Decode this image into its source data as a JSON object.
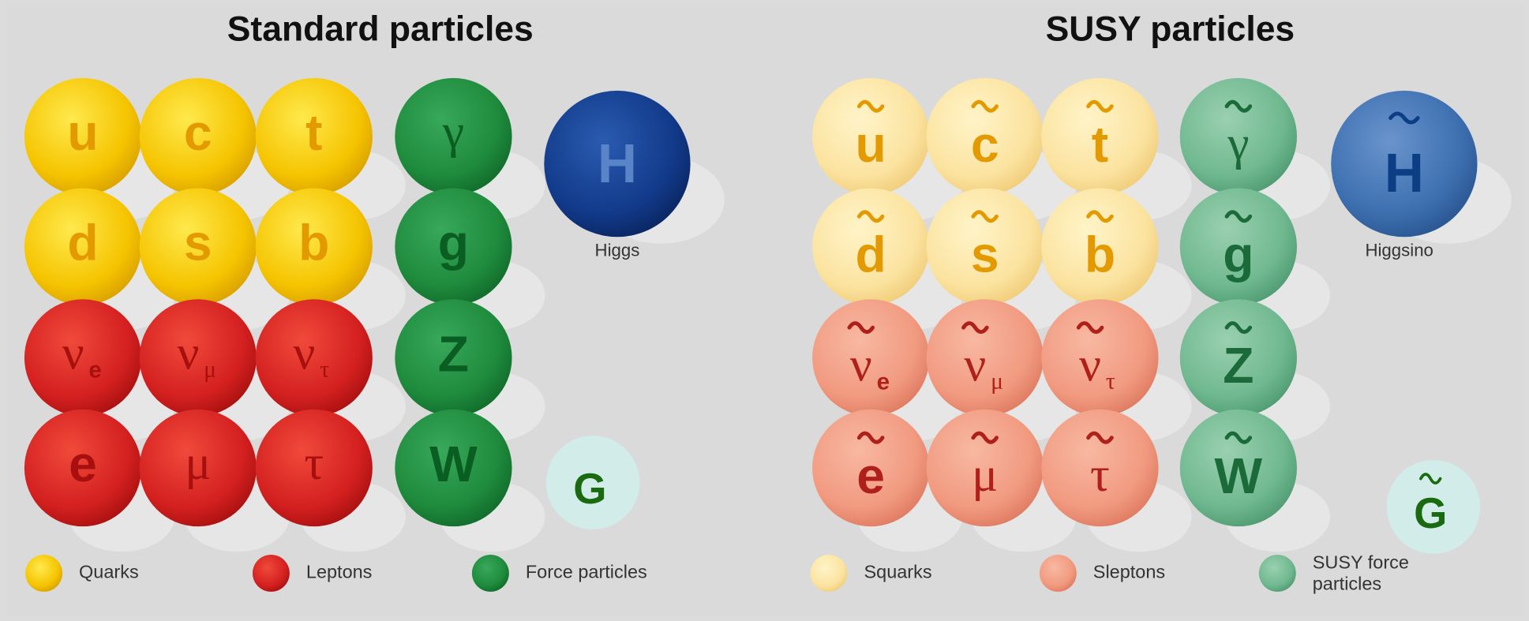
{
  "panels": [
    {
      "title": "Standard particles",
      "particles": [
        [
          {
            "symbol": "u"
          },
          {
            "symbol": "c"
          },
          {
            "symbol": "t"
          },
          {
            "symbol": "γ"
          }
        ],
        [
          {
            "symbol": "d"
          },
          {
            "symbol": "s"
          },
          {
            "symbol": "b"
          },
          {
            "symbol": "g"
          }
        ],
        [
          {
            "symbol": "ν",
            "sub": "e"
          },
          {
            "symbol": "ν",
            "sub": "μ"
          },
          {
            "symbol": "ν",
            "sub": "τ"
          },
          {
            "symbol": "Z"
          }
        ],
        [
          {
            "symbol": "e"
          },
          {
            "symbol": "μ"
          },
          {
            "symbol": "τ"
          },
          {
            "symbol": "W"
          }
        ]
      ],
      "higgs": {
        "symbol": "H",
        "label": "Higgs"
      },
      "graviton": "G",
      "legend": [
        {
          "lines": [
            "Quarks"
          ]
        },
        {
          "lines": [
            "Leptons"
          ]
        },
        {
          "lines": [
            "Force particles"
          ]
        }
      ]
    },
    {
      "title": "SUSY particles",
      "particles": [
        [
          {
            "symbol": "u"
          },
          {
            "symbol": "c"
          },
          {
            "symbol": "t"
          },
          {
            "symbol": "γ"
          }
        ],
        [
          {
            "symbol": "d"
          },
          {
            "symbol": "s"
          },
          {
            "symbol": "b"
          },
          {
            "symbol": "g"
          }
        ],
        [
          {
            "symbol": "ν",
            "sub": "e"
          },
          {
            "symbol": "ν",
            "sub": "μ"
          },
          {
            "symbol": "ν",
            "sub": "τ"
          },
          {
            "symbol": "Z"
          }
        ],
        [
          {
            "symbol": "e"
          },
          {
            "symbol": "μ"
          },
          {
            "symbol": "τ"
          },
          {
            "symbol": "W"
          }
        ]
      ],
      "higgs": {
        "symbol": "H",
        "label": "Higgsino"
      },
      "graviton": "G",
      "legend": [
        {
          "lines": [
            "Squarks"
          ]
        },
        {
          "lines": [
            "Sleptons"
          ]
        },
        {
          "lines": [
            "SUSY force",
            "particles"
          ]
        }
      ]
    }
  ]
}
